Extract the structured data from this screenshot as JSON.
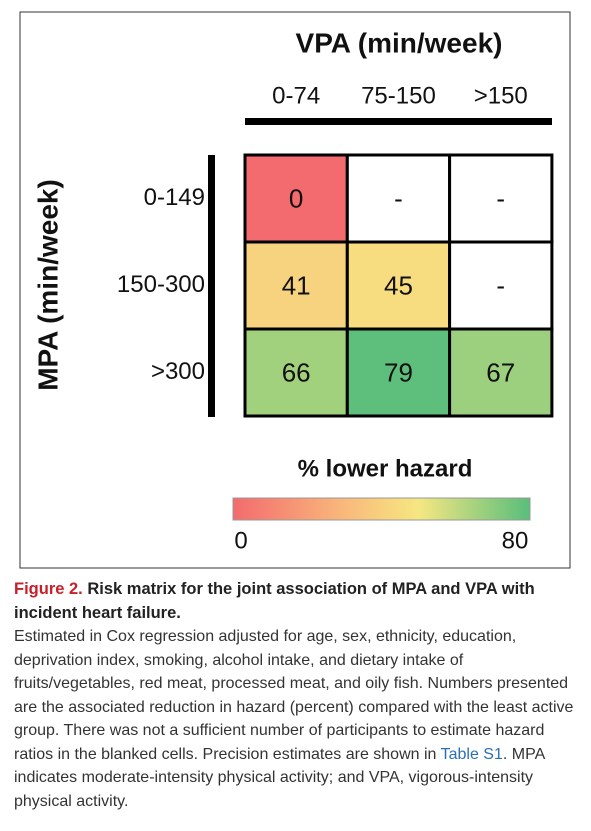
{
  "chart_data": {
    "type": "heatmap",
    "title": "VPA (min/week)",
    "y_label": "MPA (min/week)",
    "x_categories": [
      "0-74",
      "75-150",
      ">150"
    ],
    "y_categories": [
      "0-149",
      "150-300",
      ">300"
    ],
    "values": [
      [
        0,
        null,
        null
      ],
      [
        41,
        45,
        null
      ],
      [
        66,
        79,
        67
      ]
    ],
    "value_labels": [
      [
        "0",
        "-",
        "-"
      ],
      [
        "41",
        "45",
        "-"
      ],
      [
        "66",
        "79",
        "67"
      ]
    ],
    "empty_color": "#ffffff",
    "colormap": [
      {
        "value": 0,
        "color": "#f36b6e"
      },
      {
        "value": 30,
        "color": "#f9b97b"
      },
      {
        "value": 50,
        "color": "#f6e782"
      },
      {
        "value": 80,
        "color": "#58be7b"
      }
    ],
    "colorbar_title": "% lower hazard",
    "clim": [
      0,
      80
    ],
    "colorbar_ticks": [
      0,
      80
    ]
  },
  "caption": {
    "label": "Figure 2.",
    "title": "Risk matrix for the joint association of MPA and VPA with incident heart failure.",
    "body_before": "Estimated in Cox regression adjusted for age, sex, ethnicity, education, deprivation index, smoking, alcohol intake, and dietary intake of fruits/vegetables, red meat, processed meat, and oily fish. Numbers presented are the associated reduction in hazard (percent) compared with the least active group. There was not a sufficient number of participants to estimate hazard ratios in the blanked cells. Precision estimates are shown in",
    "link": "Table S1",
    "body_after": ". MPA indicates moderate-intensity physical activity; and VPA, vigorous-intensity physical activity."
  }
}
